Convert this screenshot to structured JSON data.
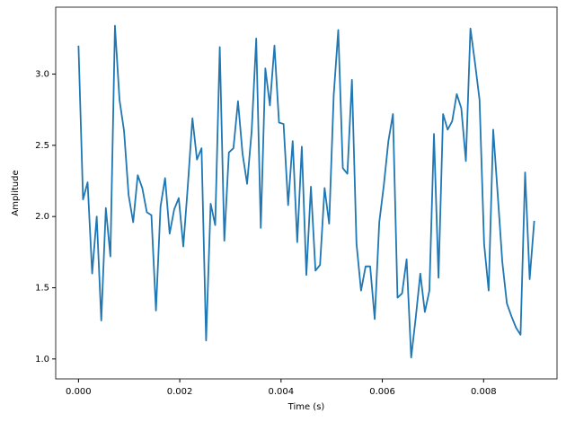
{
  "chart_data": {
    "type": "line",
    "x_label": "Time (s)",
    "y_label": "Amplitude",
    "x": [
      0,
      9e-05,
      0.00018,
      0.00027,
      0.00036,
      0.00045,
      0.00054,
      0.00063,
      0.00072,
      0.00081,
      0.0009,
      0.00099,
      0.00108,
      0.00117,
      0.00126,
      0.00135,
      0.00144,
      0.00153,
      0.00162,
      0.00171,
      0.0018,
      0.00189,
      0.00198,
      0.00207,
      0.00216,
      0.00225,
      0.00234,
      0.00243,
      0.00252,
      0.00261,
      0.0027,
      0.00279,
      0.00288,
      0.00297,
      0.00306,
      0.00315,
      0.00324,
      0.00333,
      0.00342,
      0.00351,
      0.0036,
      0.00369,
      0.00378,
      0.00387,
      0.00396,
      0.00405,
      0.00414,
      0.00423,
      0.00432,
      0.00441,
      0.0045,
      0.00459,
      0.00468,
      0.00477,
      0.00486,
      0.00495,
      0.00504,
      0.00513,
      0.00522,
      0.00531,
      0.0054,
      0.00549,
      0.00558,
      0.00567,
      0.00576,
      0.00585,
      0.00594,
      0.00603,
      0.00612,
      0.00621,
      0.0063,
      0.00639,
      0.00648,
      0.00657,
      0.00666,
      0.00675,
      0.00684,
      0.00693,
      0.00702,
      0.00711,
      0.0072,
      0.00729,
      0.00738,
      0.00747,
      0.00756,
      0.00765,
      0.00774,
      0.00783,
      0.00792,
      0.00801,
      0.0081,
      0.00819,
      0.00828,
      0.00837,
      0.00846,
      0.00855,
      0.00864,
      0.00873,
      0.00882,
      0.00891,
      0.009
    ],
    "series": [
      {
        "color": "#1f77b4",
        "values": [
          3.2,
          2.12,
          2.24,
          1.6,
          2.0,
          1.27,
          2.06,
          1.72,
          3.34,
          2.82,
          2.6,
          2.15,
          1.96,
          2.29,
          2.2,
          2.03,
          2.01,
          1.34,
          2.07,
          2.27,
          1.88,
          2.05,
          2.13,
          1.79,
          2.22,
          2.69,
          2.4,
          2.48,
          1.13,
          2.09,
          1.94,
          3.19,
          1.83,
          2.45,
          2.48,
          2.81,
          2.44,
          2.23,
          2.6,
          3.25,
          1.92,
          3.04,
          2.78,
          3.2,
          2.66,
          2.65,
          2.08,
          2.53,
          1.82,
          2.49,
          1.59,
          2.21,
          1.62,
          1.66,
          2.2,
          1.95,
          2.85,
          3.31,
          2.34,
          2.3,
          2.96,
          1.81,
          1.48,
          1.65,
          1.65,
          1.28,
          1.96,
          2.22,
          2.53,
          2.72,
          1.43,
          1.46,
          1.7,
          1.01,
          1.29,
          1.6,
          1.33,
          1.48,
          2.58,
          1.57,
          2.72,
          2.61,
          2.67,
          2.86,
          2.76,
          2.39,
          3.32,
          3.08,
          2.82,
          1.81,
          1.48,
          2.61,
          2.15,
          1.68,
          1.39,
          1.3,
          1.22,
          1.17,
          2.31,
          1.56,
          1.97
        ]
      }
    ],
    "xlim": [
      -0.00045,
      0.00945
    ],
    "ylim": [
      0.86,
      3.47
    ],
    "xticks": [
      {
        "value": 0,
        "label": "0.000"
      },
      {
        "value": 0.002,
        "label": "0.002"
      },
      {
        "value": 0.004,
        "label": "0.004"
      },
      {
        "value": 0.006,
        "label": "0.006"
      },
      {
        "value": 0.008,
        "label": "0.008"
      }
    ],
    "yticks": [
      {
        "value": 1,
        "label": "1.0"
      },
      {
        "value": 1.5,
        "label": "1.5"
      },
      {
        "value": 2,
        "label": "2.0"
      },
      {
        "value": 2.5,
        "label": "2.5"
      },
      {
        "value": 3,
        "label": "3.0"
      }
    ],
    "grid": false
  }
}
